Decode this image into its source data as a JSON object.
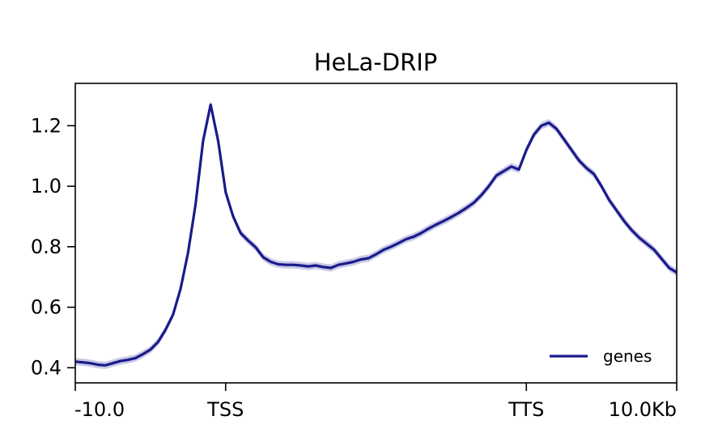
{
  "chart_data": {
    "type": "line",
    "title": "HeLa-DRIP",
    "xlabel": "",
    "ylabel": "",
    "x_ticks": [
      "-10.0",
      "TSS",
      "TTS",
      "10.0Kb"
    ],
    "y_ticks": [
      "0.4",
      "0.6",
      "0.8",
      "1.0",
      "1.2"
    ],
    "xlim": [
      0,
      80
    ],
    "ylim": [
      0.35,
      1.34
    ],
    "x_tick_positions": [
      0,
      20,
      60,
      80
    ],
    "y_tick_values": [
      0.4,
      0.6,
      0.8,
      1.0,
      1.2
    ],
    "grid": false,
    "legend": {
      "position": "lower-right",
      "entries": [
        "genes"
      ]
    },
    "series": [
      {
        "name": "genes",
        "color": "#1a1a8c",
        "band_color": "#c9c9e6",
        "band_halfwidth": 0.012,
        "x": [
          0,
          1,
          2,
          3,
          4,
          5,
          6,
          7,
          8,
          9,
          10,
          11,
          12,
          13,
          14,
          15,
          16,
          17,
          18,
          19,
          20,
          21,
          22,
          23,
          24,
          25,
          26,
          27,
          28,
          29,
          30,
          31,
          32,
          33,
          34,
          35,
          36,
          37,
          38,
          39,
          40,
          41,
          42,
          43,
          44,
          45,
          46,
          47,
          48,
          49,
          50,
          51,
          52,
          53,
          54,
          55,
          56,
          57,
          58,
          59,
          60,
          61,
          62,
          63,
          64,
          65,
          66,
          67,
          68,
          69,
          70,
          71,
          72,
          73,
          74,
          75,
          76,
          77,
          78,
          79,
          80
        ],
        "values": [
          0.42,
          0.418,
          0.415,
          0.41,
          0.408,
          0.415,
          0.422,
          0.426,
          0.432,
          0.445,
          0.46,
          0.485,
          0.525,
          0.575,
          0.66,
          0.78,
          0.94,
          1.15,
          1.27,
          1.15,
          0.98,
          0.9,
          0.845,
          0.82,
          0.798,
          0.765,
          0.75,
          0.742,
          0.74,
          0.74,
          0.738,
          0.735,
          0.738,
          0.733,
          0.73,
          0.74,
          0.745,
          0.75,
          0.758,
          0.762,
          0.775,
          0.79,
          0.8,
          0.812,
          0.825,
          0.833,
          0.845,
          0.86,
          0.873,
          0.885,
          0.898,
          0.912,
          0.928,
          0.945,
          0.97,
          1.0,
          1.035,
          1.05,
          1.065,
          1.055,
          1.12,
          1.17,
          1.2,
          1.21,
          1.19,
          1.155,
          1.12,
          1.085,
          1.06,
          1.04,
          1.0,
          0.955,
          0.92,
          0.885,
          0.855,
          0.83,
          0.81,
          0.79,
          0.76,
          0.73,
          0.715
        ]
      }
    ]
  }
}
